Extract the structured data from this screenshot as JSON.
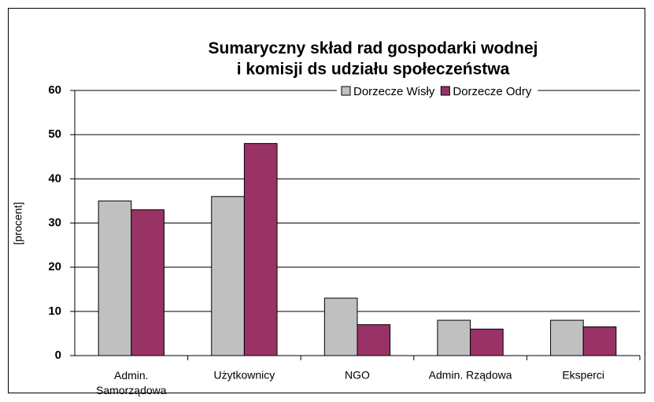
{
  "chart_data": {
    "type": "bar",
    "title": "Sumaryczny skład rad gospodarki wodnej\ni komisji ds udziału społeczeństwa",
    "ylabel": "[procent]",
    "categories": [
      "Admin.\nSamorządowa",
      "Użytkownicy",
      "NGO",
      "Admin. Rządowa",
      "Eksperci"
    ],
    "series": [
      {
        "name": "Dorzecze Wisły",
        "color": "#c0c0c0",
        "values": [
          35,
          36,
          13,
          8,
          8
        ]
      },
      {
        "name": "Dorzecze Odry",
        "color": "#993366",
        "values": [
          33,
          48,
          7,
          6,
          6.5
        ]
      }
    ],
    "ylim": [
      0,
      60
    ],
    "yticks": [
      0,
      10,
      20,
      30,
      40,
      50,
      60
    ],
    "grid": true,
    "legend": "top-right"
  }
}
